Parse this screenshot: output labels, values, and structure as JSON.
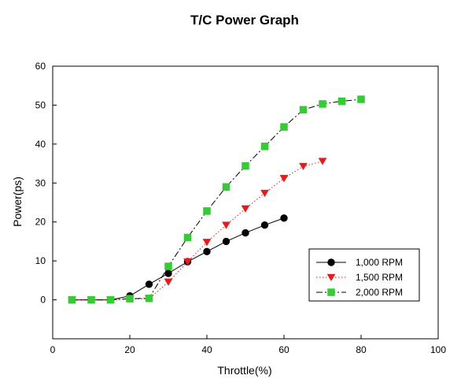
{
  "chart_data": {
    "type": "line",
    "title": "T/C Power Graph",
    "xlabel": "Throttle(%)",
    "ylabel": "Power(ps)",
    "xlim": [
      0,
      100
    ],
    "ylim": [
      -10,
      60
    ],
    "xticks": [
      0,
      20,
      40,
      60,
      80,
      100
    ],
    "yticks": [
      0,
      10,
      20,
      30,
      40,
      50,
      60
    ],
    "grid": false,
    "legend_position": "lower-right",
    "series": [
      {
        "name": "1,000 RPM",
        "color": "#000000",
        "marker": "circle",
        "line_style": "solid",
        "x": [
          5,
          10,
          15,
          20,
          25,
          30,
          35,
          40,
          45,
          50,
          55,
          60
        ],
        "y": [
          0,
          0,
          0,
          1,
          4,
          6.8,
          9.8,
          12.4,
          15,
          17.2,
          19.2,
          21
        ]
      },
      {
        "name": "1,500 RPM",
        "color": "#e8191a",
        "marker": "triangle-down",
        "line_style": "dotted",
        "x": [
          5,
          10,
          15,
          20,
          25,
          30,
          35,
          40,
          45,
          50,
          55,
          60,
          65,
          70
        ],
        "y": [
          0,
          0,
          0,
          0.2,
          0.3,
          4.6,
          9.8,
          14.8,
          19.2,
          23.4,
          27.4,
          31.2,
          34.3,
          35.6
        ]
      },
      {
        "name": "2,000 RPM",
        "color": "#33cc33",
        "marker": "square",
        "line_style": "dash-dot",
        "x": [
          5,
          10,
          15,
          20,
          25,
          30,
          35,
          40,
          45,
          50,
          55,
          60,
          65,
          70,
          75,
          80
        ],
        "y": [
          0,
          0,
          0,
          0.3,
          0.4,
          8.6,
          16,
          22.8,
          29,
          34.4,
          39.4,
          44.4,
          48.8,
          50.3,
          51,
          51.5
        ]
      }
    ]
  }
}
